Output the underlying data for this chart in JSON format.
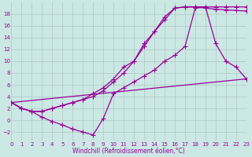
{
  "background_color": "#cbe8e4",
  "grid_color": "#b0c8c4",
  "line_color": "#990099",
  "marker": "+",
  "markersize": 4,
  "linewidth": 0.9,
  "xlabel": "Windchill (Refroidissement éolien,°C)",
  "ylabel_ticks": [
    -2,
    0,
    2,
    4,
    6,
    8,
    10,
    12,
    14,
    16,
    18
  ],
  "xlabel_ticks": [
    0,
    1,
    2,
    3,
    4,
    5,
    6,
    7,
    8,
    9,
    10,
    11,
    12,
    13,
    14,
    15,
    16,
    17,
    18,
    19,
    20,
    21,
    22,
    23
  ],
  "xlim": [
    0,
    23
  ],
  "ylim": [
    -3.5,
    20
  ],
  "series": [
    {
      "x": [
        0,
        1,
        2,
        3,
        4,
        5,
        6,
        7,
        8,
        9,
        10,
        11,
        12,
        13,
        14,
        15,
        16,
        17,
        18,
        19,
        20,
        21,
        22,
        23
      ],
      "y": [
        3,
        2,
        1.5,
        1.5,
        2,
        2.5,
        3,
        3.5,
        4,
        5,
        6.5,
        8,
        10,
        13,
        15,
        17.5,
        19,
        19.2,
        19.2,
        19,
        18.8,
        18.7,
        18.6,
        18.5
      ],
      "markers_at": [
        0,
        1,
        2,
        3,
        4,
        5,
        6,
        7,
        8,
        9,
        10,
        11,
        12,
        13,
        14,
        15,
        16,
        17,
        18,
        19,
        20,
        21,
        22,
        23
      ]
    },
    {
      "x": [
        0,
        1,
        2,
        3,
        4,
        5,
        6,
        7,
        8,
        9,
        10,
        11,
        12,
        13,
        14,
        15,
        16,
        17,
        18,
        19,
        20,
        21,
        22,
        23
      ],
      "y": [
        3,
        2,
        1.5,
        1.5,
        2,
        2.5,
        3,
        3.5,
        4.5,
        5.5,
        7,
        9,
        10,
        12.5,
        15,
        17,
        19,
        19.2,
        19.2,
        19.2,
        13,
        10,
        9,
        7
      ],
      "markers_at": [
        0,
        1,
        2,
        3,
        4,
        5,
        6,
        7,
        8,
        9,
        10,
        11,
        12,
        13,
        14,
        15,
        16,
        17,
        18,
        19,
        20,
        21,
        22,
        23
      ]
    },
    {
      "x": [
        0,
        1,
        2,
        3,
        4,
        5,
        6,
        7,
        8,
        9,
        10,
        11,
        12,
        13,
        14,
        15,
        16,
        17,
        18,
        19,
        20,
        21,
        22,
        23
      ],
      "y": [
        3,
        2,
        1.5,
        0.5,
        -0.2,
        -0.8,
        -1.5,
        -2,
        -2.5,
        0.3,
        4.5,
        5.5,
        6.5,
        7.5,
        8.5,
        10,
        11,
        12.5,
        19,
        19.2,
        19.2,
        19.2,
        19.2,
        19.2
      ],
      "markers_at": [
        0,
        1,
        2,
        3,
        4,
        5,
        6,
        7,
        8,
        9,
        10,
        11,
        12,
        13,
        14,
        15,
        16,
        17,
        18,
        19,
        20,
        21,
        22,
        23
      ]
    },
    {
      "x": [
        0,
        23
      ],
      "y": [
        3,
        7
      ],
      "markers_at": []
    }
  ]
}
